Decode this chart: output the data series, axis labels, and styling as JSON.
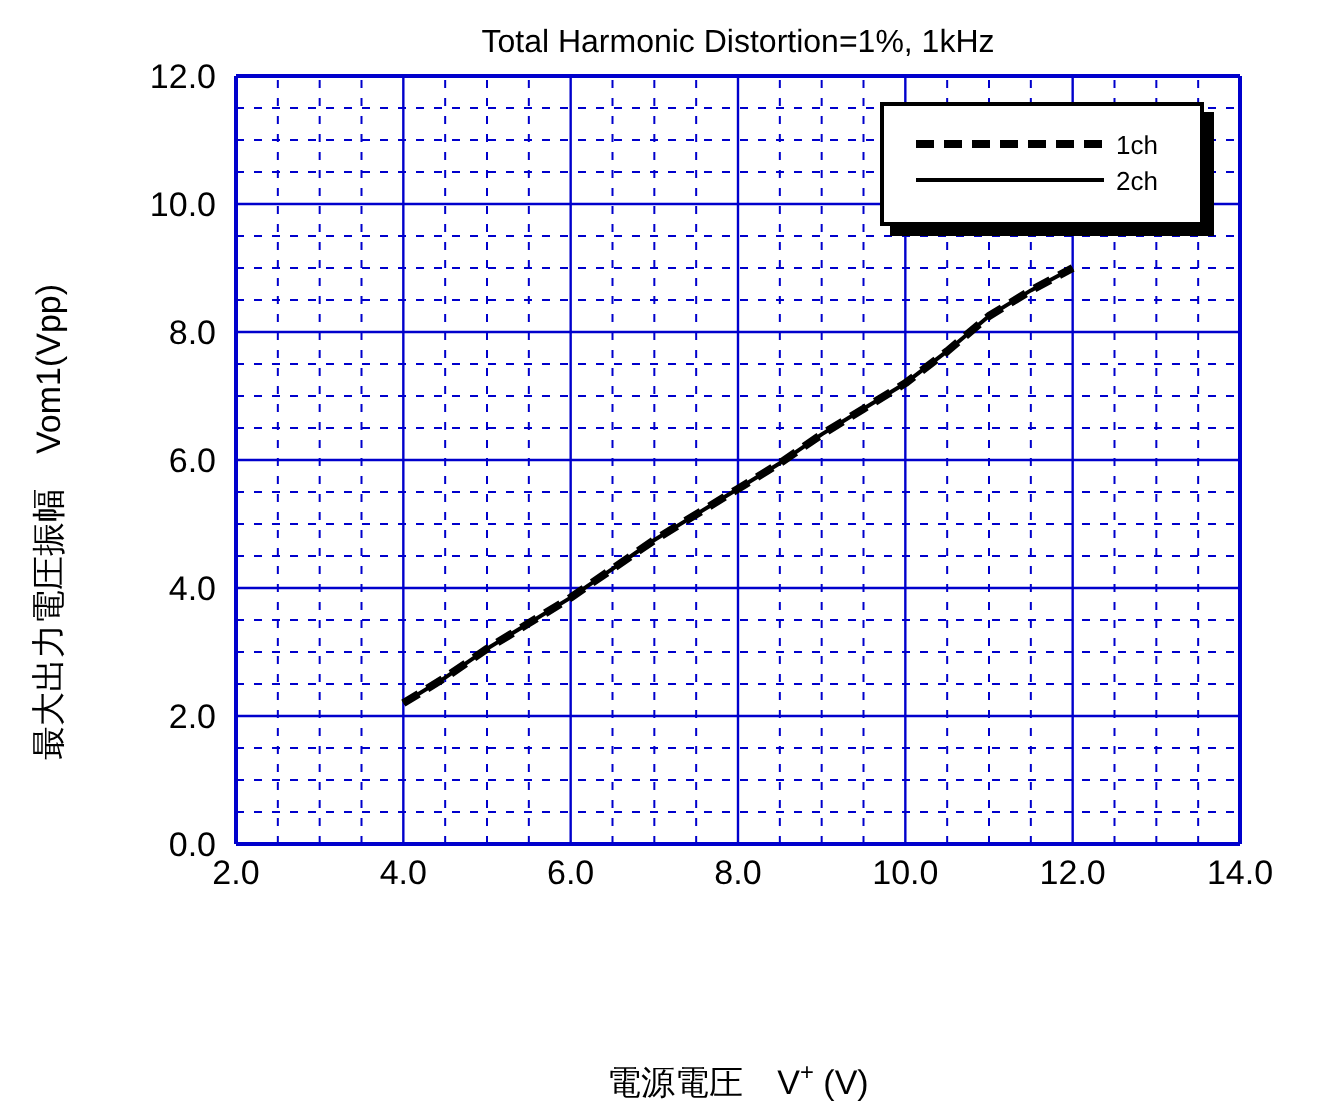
{
  "chart_data": {
    "type": "line",
    "title": "Total Harmonic Distortion=1%, 1kHz",
    "xlabel": "電源電圧　V$^{+}$ (V)",
    "ylabel": "最大出力電圧振幅　Vom1(Vpp)",
    "xlim": [
      2,
      14
    ],
    "xticks": [
      {
        "value": 2,
        "label": "2.0"
      },
      {
        "value": 2.5,
        "label": null
      },
      {
        "value": 3,
        "label": null
      },
      {
        "value": 3.5,
        "label": null
      },
      {
        "value": 4,
        "label": "4.0"
      },
      {
        "value": 4.5,
        "label": null
      },
      {
        "value": 5,
        "label": null
      },
      {
        "value": 5.5,
        "label": null
      },
      {
        "value": 6,
        "label": "6.0"
      },
      {
        "value": 6.5,
        "label": null
      },
      {
        "value": 7,
        "label": null
      },
      {
        "value": 7.5,
        "label": null
      },
      {
        "value": 8,
        "label": "8.0"
      },
      {
        "value": 8.5,
        "label": null
      },
      {
        "value": 9,
        "label": null
      },
      {
        "value": 9.5,
        "label": null
      },
      {
        "value": 10,
        "label": "10.0"
      },
      {
        "value": 10.5,
        "label": null
      },
      {
        "value": 11,
        "label": null
      },
      {
        "value": 11.5,
        "label": null
      },
      {
        "value": 12,
        "label": "12.0"
      },
      {
        "value": 12.5,
        "label": null
      },
      {
        "value": 13,
        "label": null
      },
      {
        "value": 13.5,
        "label": null
      },
      {
        "value": 14,
        "label": "14.0"
      }
    ],
    "ylim": [
      0,
      12
    ],
    "yticks": [
      {
        "value": 0,
        "label": "0.0"
      },
      {
        "value": 0.5,
        "label": null
      },
      {
        "value": 1,
        "label": null
      },
      {
        "value": 1.5,
        "label": null
      },
      {
        "value": 2,
        "label": "2.0"
      },
      {
        "value": 2.5,
        "label": null
      },
      {
        "value": 3,
        "label": null
      },
      {
        "value": 3.5,
        "label": null
      },
      {
        "value": 4,
        "label": "4.0"
      },
      {
        "value": 4.5,
        "label": null
      },
      {
        "value": 5,
        "label": null
      },
      {
        "value": 5.5,
        "label": null
      },
      {
        "value": 6,
        "label": "6.0"
      },
      {
        "value": 6.5,
        "label": null
      },
      {
        "value": 7,
        "label": null
      },
      {
        "value": 7.5,
        "label": null
      },
      {
        "value": 8,
        "label": "8.0"
      },
      {
        "value": 8.5,
        "label": null
      },
      {
        "value": 9,
        "label": null
      },
      {
        "value": 9.5,
        "label": null
      },
      {
        "value": 10,
        "label": "10.0"
      },
      {
        "value": 10.5,
        "label": null
      },
      {
        "value": 11,
        "label": null
      },
      {
        "value": 11.5,
        "label": null
      },
      {
        "value": 12,
        "label": "12.0"
      }
    ],
    "grid": true,
    "legend": "top right",
    "marker": "none",
    "series": [
      {
        "name": "1ch",
        "color": "#000000",
        "line_style": "dashed",
        "x": [
          4.0,
          4.5,
          5.0,
          5.5,
          6.0,
          6.5,
          7.0,
          7.5,
          8.0,
          8.5,
          9.0,
          9.5,
          10.0,
          10.5,
          11.0,
          11.5,
          12.0
        ],
        "values": [
          2.2,
          2.6,
          3.05,
          3.45,
          3.85,
          4.3,
          4.75,
          5.15,
          5.55,
          5.95,
          6.4,
          6.8,
          7.2,
          7.7,
          8.25,
          8.65,
          9.0
        ]
      },
      {
        "name": "2ch",
        "color": "#000000",
        "line_style": "solid",
        "x": [
          4.0,
          4.5,
          5.0,
          5.5,
          6.0,
          6.5,
          7.0,
          7.5,
          8.0,
          8.5,
          9.0,
          9.5,
          10.0,
          10.5,
          11.0,
          11.5,
          12.0
        ],
        "values": [
          2.2,
          2.6,
          3.05,
          3.45,
          3.85,
          4.3,
          4.75,
          5.15,
          5.55,
          5.95,
          6.4,
          6.8,
          7.2,
          7.7,
          8.25,
          8.65,
          9.0
        ]
      }
    ]
  }
}
